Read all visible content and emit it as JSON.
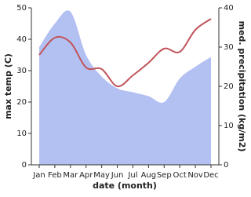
{
  "chart_data": {
    "type": "line",
    "x_label": "date (month)",
    "y_label": "max temp (C)",
    "y2_label": "med. precipitation (kg/m2)",
    "categories": [
      "Jan",
      "Feb",
      "Mar",
      "Apr",
      "May",
      "Jun",
      "Jul",
      "Aug",
      "Sep",
      "Oct",
      "Nov",
      "Dec"
    ],
    "series": [
      {
        "name": "max temp",
        "color": "#c0545a",
        "values": [
          35,
          40.5,
          39,
          31,
          30.5,
          25,
          28.5,
          32.5,
          37,
          36,
          43,
          46.5
        ]
      },
      {
        "name": "med. precipitation",
        "color": "#b3c0f2",
        "axis": "y2",
        "area": true,
        "values": [
          30,
          36,
          39,
          28,
          22.5,
          19.5,
          18.5,
          17.5,
          16,
          22,
          25,
          27.5
        ]
      }
    ],
    "ylim": [
      0,
      50
    ],
    "yticks": [
      0,
      10,
      20,
      30,
      40,
      50
    ],
    "y2lim": [
      0,
      40
    ],
    "y2ticks": [
      0,
      10,
      20,
      30,
      40
    ]
  }
}
